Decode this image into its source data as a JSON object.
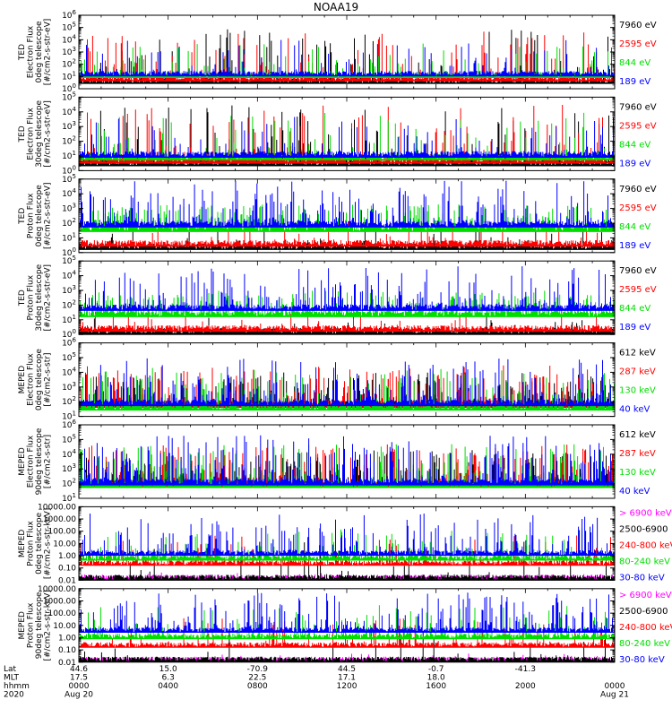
{
  "figure": {
    "title": "NOAA19",
    "ephemeris": {
      "rows": [
        {
          "label": "Lat",
          "values": [
            "44.6",
            "15.0",
            "-70.9",
            "44.5",
            "-0.7",
            "-41.3"
          ]
        },
        {
          "label": "MLT",
          "values": [
            "17.5",
            "6.3",
            "22.5",
            "17.1",
            "18.0",
            ""
          ]
        },
        {
          "label": "hhmm",
          "values": [
            "0000",
            "0400",
            "0800",
            "1200",
            "1600",
            "2000",
            "0000"
          ]
        },
        {
          "label": "2020",
          "values": [
            "Aug 20",
            "",
            "",
            "",
            "",
            "",
            "Aug 21"
          ]
        }
      ]
    }
  },
  "chart_data": [
    {
      "type": "line",
      "ylabel": [
        "TED",
        "Electron Flux",
        "0deg telescope",
        "[#/cm2-s-str-eV]"
      ],
      "yscale": "log",
      "ylim": [
        1,
        1000000
      ],
      "ytick_labels": [
        "10^0",
        "10^1",
        "10^2",
        "10^3",
        "10^4",
        "10^5",
        "10^6"
      ],
      "series": [
        {
          "name": "7960 eV",
          "color": "#000000",
          "spike_max": 100000,
          "base": 5,
          "density": 0.25
        },
        {
          "name": "2595 eV",
          "color": "#ff0000",
          "spike_max": 50000,
          "base": 8,
          "density": 0.3
        },
        {
          "name": "844 eV",
          "color": "#00dd00",
          "spike_max": 5000,
          "base": 15,
          "density": 0.2
        },
        {
          "name": "189 eV",
          "color": "#0000ff",
          "spike_max": 10000,
          "base": 20,
          "density": 0.2
        }
      ]
    },
    {
      "type": "line",
      "ylabel": [
        "TED",
        "Electron Flux",
        "30deg telescope",
        "[#/cm2-s-str-eV]"
      ],
      "yscale": "log",
      "ylim": [
        1,
        100000
      ],
      "ytick_labels": [
        "10^0",
        "10^1",
        "10^2",
        "10^3",
        "10^4",
        "10^5"
      ],
      "series": [
        {
          "name": "7960 eV",
          "color": "#000000",
          "spike_max": 30000,
          "base": 4,
          "density": 0.25
        },
        {
          "name": "2595 eV",
          "color": "#ff0000",
          "spike_max": 30000,
          "base": 6,
          "density": 0.3
        },
        {
          "name": "844 eV",
          "color": "#00dd00",
          "spike_max": 10000,
          "base": 10,
          "density": 0.2
        },
        {
          "name": "189 eV",
          "color": "#0000ff",
          "spike_max": 5000,
          "base": 15,
          "density": 0.2
        }
      ]
    },
    {
      "type": "line",
      "ylabel": [
        "TED",
        "Proton Flux",
        "0deg telescope",
        "[#/cm2-s-str-eV]"
      ],
      "yscale": "log",
      "ylim": [
        1,
        100000
      ],
      "ytick_labels": [
        "10^0",
        "10^1",
        "10^2",
        "10^3",
        "10^4",
        "10^5"
      ],
      "series": [
        {
          "name": "7960 eV",
          "color": "#000000",
          "spike_max": 50,
          "base": 3,
          "density": 0.1
        },
        {
          "name": "2595 eV",
          "color": "#ff0000",
          "spike_max": 200,
          "base": 5,
          "density": 0.1
        },
        {
          "name": "844 eV",
          "color": "#00dd00",
          "spike_max": 2000,
          "base": 50,
          "density": 0.8
        },
        {
          "name": "189 eV",
          "color": "#0000ff",
          "spike_max": 80000,
          "base": 100,
          "density": 0.5
        }
      ]
    },
    {
      "type": "line",
      "ylabel": [
        "TED",
        "Proton Flux",
        "30deg telescope",
        "[#/cm2-s-str-eV]"
      ],
      "yscale": "log",
      "ylim": [
        1,
        100000
      ],
      "ytick_labels": [
        "10^0",
        "10^1",
        "10^2",
        "10^3",
        "10^4",
        "10^5"
      ],
      "series": [
        {
          "name": "7960 eV",
          "color": "#000000",
          "spike_max": 20,
          "base": 2,
          "density": 0.1
        },
        {
          "name": "2595 eV",
          "color": "#ff0000",
          "spike_max": 100,
          "base": 3,
          "density": 0.1
        },
        {
          "name": "844 eV",
          "color": "#00dd00",
          "spike_max": 1000,
          "base": 30,
          "density": 0.7
        },
        {
          "name": "189 eV",
          "color": "#0000ff",
          "spike_max": 50000,
          "base": 80,
          "density": 0.4
        }
      ]
    },
    {
      "type": "line",
      "ylabel": [
        "MEPED",
        "Electron Flux",
        "0deg telescope",
        "[#/cm2-s-str]"
      ],
      "yscale": "log",
      "ylim": [
        10,
        1000000
      ],
      "ytick_labels": [
        "10^1",
        "10^2",
        "10^3",
        "10^4",
        "10^5",
        "10^6"
      ],
      "series": [
        {
          "name": "612 keV",
          "color": "#000000",
          "spike_max": 10000,
          "base": 80,
          "density": 0.5
        },
        {
          "name": "287 keV",
          "color": "#ff0000",
          "spike_max": 30000,
          "base": 90,
          "density": 0.4
        },
        {
          "name": "130 keV",
          "color": "#00dd00",
          "spike_max": 20000,
          "base": 50,
          "density": 0.4
        },
        {
          "name": "40 keV",
          "color": "#0000ff",
          "spike_max": 100000,
          "base": 100,
          "density": 0.5
        }
      ]
    },
    {
      "type": "line",
      "ylabel": [
        "MEPED",
        "Electron Flux",
        "90deg telescope",
        "[#/cm2-s-str]"
      ],
      "yscale": "log",
      "ylim": [
        10,
        1000000
      ],
      "ytick_labels": [
        "10^1",
        "10^2",
        "10^3",
        "10^4",
        "10^5",
        "10^6"
      ],
      "series": [
        {
          "name": "612 keV",
          "color": "#000000",
          "spike_max": 20000,
          "base": 100,
          "density": 0.6
        },
        {
          "name": "287 keV",
          "color": "#ff0000",
          "spike_max": 50000,
          "base": 120,
          "density": 0.5
        },
        {
          "name": "130 keV",
          "color": "#00dd00",
          "spike_max": 50000,
          "base": 100,
          "density": 0.5
        },
        {
          "name": "40 keV",
          "color": "#0000ff",
          "spike_max": 200000,
          "base": 150,
          "density": 0.6
        }
      ]
    },
    {
      "type": "line",
      "ylabel": [
        "MEPED",
        "Proton Flux",
        "0deg telescope",
        "[#/cm2-s-str-keV]"
      ],
      "yscale": "log",
      "ylim": [
        0.01,
        10000
      ],
      "ytick_labels": [
        "0.01",
        "0.10",
        "1.00",
        "10.00",
        "100.00",
        "1000.00",
        "10000.00"
      ],
      "series": [
        {
          "name": "> 6900 keV",
          "color": "#ff00ff",
          "spike_max": 0.05,
          "base": 0.02,
          "density": 0.05
        },
        {
          "name": "2500-6900",
          "color": "#000000",
          "spike_max": 20,
          "base": 0.02,
          "density": 0.05
        },
        {
          "name": "240-800 keV",
          "color": "#ff0000",
          "spike_max": 50,
          "base": 0.3,
          "density": 0.2
        },
        {
          "name": "80-240 keV",
          "color": "#00dd00",
          "spike_max": 200,
          "base": 0.8,
          "density": 0.3
        },
        {
          "name": "30-80 keV",
          "color": "#0000ff",
          "spike_max": 3000,
          "base": 2,
          "density": 0.4
        }
      ]
    },
    {
      "type": "line",
      "ylabel": [
        "MEPED",
        "Proton Flux",
        "90deg telescope",
        "[#/cm2-s-str-keV]"
      ],
      "yscale": "log",
      "ylim": [
        0.01,
        10000
      ],
      "ytick_labels": [
        "0.01",
        "0.10",
        "1.00",
        "10.00",
        "100.00",
        "1000.00",
        "10000.00"
      ],
      "series": [
        {
          "name": "> 6900 keV",
          "color": "#ff00ff",
          "spike_max": 0.05,
          "base": 0.02,
          "density": 0.05
        },
        {
          "name": "2500-6900",
          "color": "#000000",
          "spike_max": 10,
          "base": 0.02,
          "density": 0.05
        },
        {
          "name": "240-800 keV",
          "color": "#ff0000",
          "spike_max": 50,
          "base": 0.3,
          "density": 0.2
        },
        {
          "name": "80-240 keV",
          "color": "#00dd00",
          "spike_max": 500,
          "base": 1.5,
          "density": 0.3
        },
        {
          "name": "30-80 keV",
          "color": "#0000ff",
          "spike_max": 5000,
          "base": 5,
          "density": 0.5
        }
      ]
    }
  ]
}
